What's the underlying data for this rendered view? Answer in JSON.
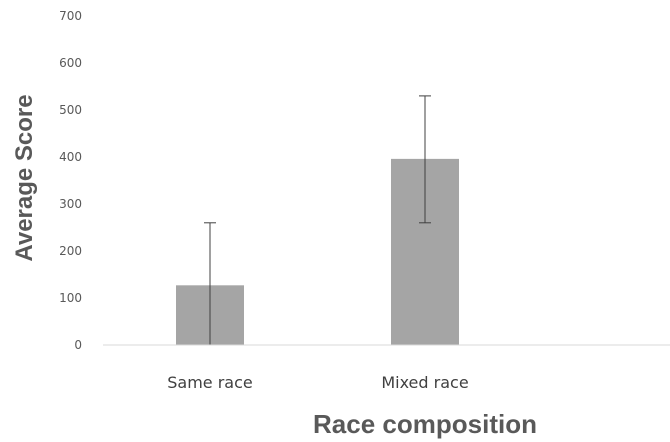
{
  "chart_data": {
    "type": "bar",
    "categories": [
      "Same race",
      "Mixed race"
    ],
    "values": [
      127,
      396
    ],
    "error_bars": [
      {
        "low": 0,
        "high": 260
      },
      {
        "low": 260,
        "high": 530
      }
    ],
    "xlabel": "Race composition",
    "ylabel": "Average Score",
    "ylim": [
      0,
      700
    ],
    "yticks": [
      "0",
      "100",
      "200",
      "300",
      "400",
      "500",
      "600",
      "700"
    ],
    "grid": false,
    "legend": "none",
    "bar_color": "#a5a5a5",
    "errorbar_color": "#404040",
    "axis_color": "#d9d9d9",
    "label_color": "#595959"
  }
}
